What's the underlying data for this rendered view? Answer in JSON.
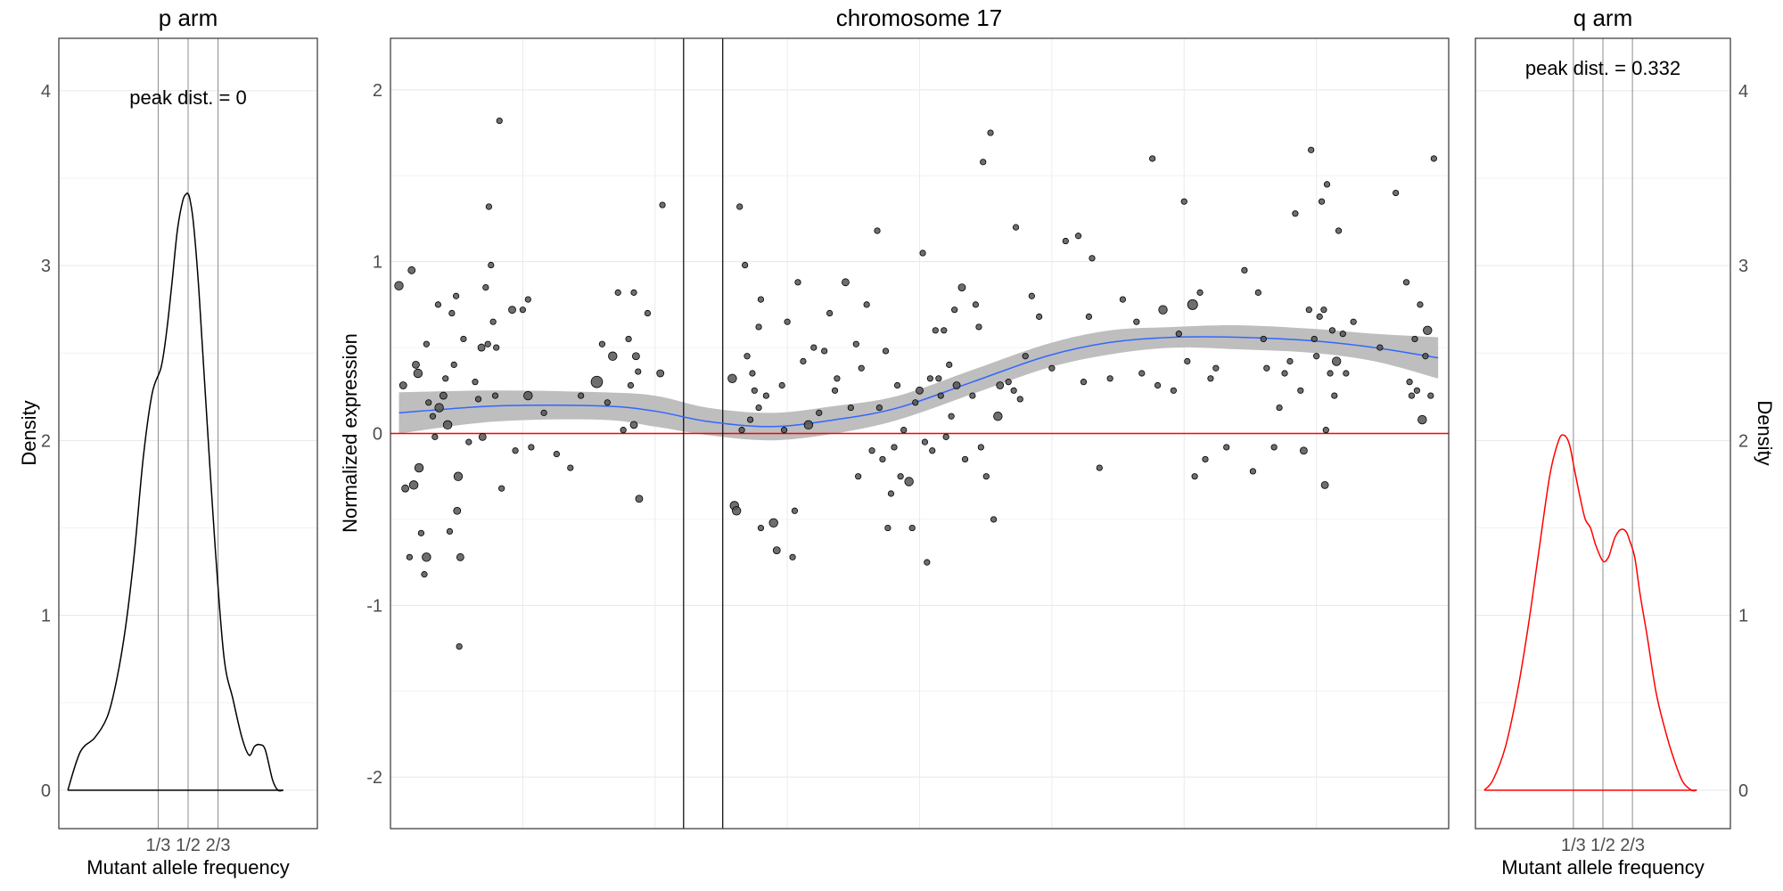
{
  "chart_data": [
    {
      "id": "p-arm",
      "type": "line",
      "title": "p arm",
      "annotation": "peak dist. = 0",
      "xlabel": "Mutant allele frequency",
      "ylabel": "Density",
      "xlim": [
        -0.22,
        1.22
      ],
      "ylim": [
        -0.22,
        4.3
      ],
      "x_ticks": [
        {
          "value": 0.3333,
          "label": "1/3"
        },
        {
          "value": 0.5,
          "label": "1/2"
        },
        {
          "value": 0.6667,
          "label": "2/3"
        }
      ],
      "y_ticks": [
        {
          "value": 0,
          "label": "0"
        },
        {
          "value": 1,
          "label": "1"
        },
        {
          "value": 2,
          "label": "2"
        },
        {
          "value": 3,
          "label": "3"
        },
        {
          "value": 4,
          "label": "4"
        }
      ],
      "vlines": [
        0.3333,
        0.5,
        0.6667
      ],
      "line_color": "#000000",
      "x": [
        -0.17,
        -0.1,
        -0.02,
        0.05,
        0.1,
        0.15,
        0.2,
        0.25,
        0.3,
        0.35,
        0.38,
        0.41,
        0.44,
        0.47,
        0.49,
        0.5,
        0.51,
        0.53,
        0.56,
        0.6,
        0.65,
        0.7,
        0.75,
        0.8,
        0.84,
        0.87,
        0.9,
        0.93,
        0.97,
        1.0,
        1.03
      ],
      "y": [
        0.0,
        0.22,
        0.3,
        0.42,
        0.62,
        0.92,
        1.35,
        1.9,
        2.27,
        2.42,
        2.62,
        2.9,
        3.2,
        3.37,
        3.41,
        3.41,
        3.38,
        3.24,
        2.86,
        2.2,
        1.4,
        0.76,
        0.52,
        0.3,
        0.2,
        0.25,
        0.26,
        0.23,
        0.06,
        0.0,
        0.0
      ]
    },
    {
      "id": "chromosome",
      "type": "scatter",
      "title": "chromosome 17",
      "ylabel": "Normalized expression",
      "xlim": [
        0,
        100
      ],
      "ylim": [
        -2.3,
        2.3
      ],
      "y_ticks": [
        {
          "value": -2,
          "label": "-2"
        },
        {
          "value": -1,
          "label": "-1"
        },
        {
          "value": 0,
          "label": "0"
        },
        {
          "value": 1,
          "label": "1"
        },
        {
          "value": 2,
          "label": "2"
        }
      ],
      "centromere": [
        27.7,
        31.4
      ],
      "hline": 0,
      "hline_color": "#ff0000",
      "smooth_color": "#3366ff",
      "band_color": "#bebebe",
      "smooth": {
        "x": [
          0.8,
          10,
          20,
          25,
          30,
          36,
          42,
          48,
          55,
          62,
          68,
          74,
          80,
          87,
          93,
          99
        ],
        "y": [
          0.12,
          0.16,
          0.16,
          0.13,
          0.07,
          0.04,
          0.08,
          0.15,
          0.3,
          0.45,
          0.53,
          0.56,
          0.56,
          0.54,
          0.5,
          0.44
        ],
        "band_half_width": [
          0.12,
          0.09,
          0.08,
          0.09,
          0.08,
          0.08,
          0.08,
          0.07,
          0.07,
          0.07,
          0.07,
          0.06,
          0.07,
          0.07,
          0.08,
          0.12
        ]
      },
      "points": [
        [
          0.8,
          0.86,
          2
        ],
        [
          1.2,
          0.28,
          1.5
        ],
        [
          1.4,
          -0.32,
          1.5
        ],
        [
          1.8,
          -0.72,
          1
        ],
        [
          2,
          0.95,
          1.5
        ],
        [
          2.2,
          -0.3,
          2
        ],
        [
          2.4,
          0.4,
          1.5
        ],
        [
          2.6,
          0.35,
          2
        ],
        [
          2.7,
          -0.2,
          2
        ],
        [
          2.9,
          -0.58,
          1
        ],
        [
          3.2,
          -0.82,
          1
        ],
        [
          3.4,
          0.52,
          1
        ],
        [
          3.4,
          -0.72,
          2
        ],
        [
          3.6,
          0.18,
          1
        ],
        [
          4,
          0.1,
          1
        ],
        [
          4.2,
          -0.02,
          1
        ],
        [
          4.5,
          0.75,
          1
        ],
        [
          4.6,
          0.15,
          2
        ],
        [
          5,
          0.22,
          1.5
        ],
        [
          5.2,
          0.32,
          1
        ],
        [
          5.4,
          0.05,
          2
        ],
        [
          5.6,
          -0.57,
          1
        ],
        [
          5.8,
          0.7,
          1
        ],
        [
          6,
          0.4,
          1
        ],
        [
          6.2,
          0.8,
          1
        ],
        [
          6.3,
          -0.45,
          1.5
        ],
        [
          6.4,
          -0.25,
          2
        ],
        [
          6.5,
          -1.24,
          1
        ],
        [
          6.6,
          -0.72,
          1.5
        ],
        [
          6.9,
          0.55,
          1
        ],
        [
          7.4,
          -0.05,
          1
        ],
        [
          8,
          0.3,
          1
        ],
        [
          8.3,
          0.2,
          1
        ],
        [
          8.6,
          0.5,
          1.5
        ],
        [
          8.7,
          -0.02,
          1.5
        ],
        [
          9,
          0.85,
          1
        ],
        [
          9.2,
          0.52,
          1
        ],
        [
          9.3,
          1.32,
          1
        ],
        [
          9.5,
          0.98,
          1
        ],
        [
          9.7,
          0.65,
          1
        ],
        [
          9.9,
          0.22,
          1
        ],
        [
          10,
          0.5,
          1
        ],
        [
          10.3,
          1.82,
          1
        ],
        [
          10.5,
          -0.32,
          1
        ],
        [
          11.5,
          0.72,
          1.5
        ],
        [
          11.8,
          -0.1,
          1
        ],
        [
          12.5,
          0.72,
          1
        ],
        [
          13,
          0.78,
          1
        ],
        [
          13,
          0.22,
          2
        ],
        [
          13.3,
          -0.08,
          1
        ],
        [
          14.5,
          0.12,
          1
        ],
        [
          15.7,
          -0.12,
          1
        ],
        [
          17,
          -0.2,
          1
        ],
        [
          18,
          0.22,
          1
        ],
        [
          19.5,
          0.3,
          3
        ],
        [
          20,
          0.52,
          1
        ],
        [
          20.5,
          0.18,
          1
        ],
        [
          21,
          0.45,
          2
        ],
        [
          21.5,
          0.82,
          1
        ],
        [
          22,
          0.02,
          1
        ],
        [
          22.5,
          0.55,
          1
        ],
        [
          22.7,
          0.28,
          1
        ],
        [
          23,
          0.82,
          1
        ],
        [
          23,
          0.05,
          1.5
        ],
        [
          23.2,
          0.45,
          1.5
        ],
        [
          23.4,
          0.36,
          1
        ],
        [
          23.5,
          -0.38,
          1.5
        ],
        [
          24.3,
          0.7,
          1
        ],
        [
          25.5,
          0.35,
          1.5
        ],
        [
          25.7,
          1.33,
          1
        ],
        [
          32.3,
          0.32,
          2
        ],
        [
          32.5,
          -0.42,
          2
        ],
        [
          32.7,
          -0.45,
          2
        ],
        [
          33,
          1.32,
          1
        ],
        [
          33.2,
          0.02,
          1
        ],
        [
          33.5,
          0.98,
          1
        ],
        [
          33.7,
          0.45,
          1
        ],
        [
          34,
          0.08,
          1
        ],
        [
          34.2,
          0.35,
          1
        ],
        [
          34.4,
          0.25,
          1
        ],
        [
          34.8,
          0.62,
          1
        ],
        [
          34.8,
          0.15,
          1
        ],
        [
          35,
          0.78,
          1
        ],
        [
          35,
          -0.55,
          1
        ],
        [
          35.5,
          0.22,
          1
        ],
        [
          36.2,
          -0.52,
          2
        ],
        [
          36.5,
          -0.68,
          1.5
        ],
        [
          37,
          0.28,
          1
        ],
        [
          37.2,
          0.02,
          1
        ],
        [
          37.5,
          0.65,
          1
        ],
        [
          38,
          -0.72,
          1
        ],
        [
          38.2,
          -0.45,
          1
        ],
        [
          38.5,
          0.88,
          1
        ],
        [
          39,
          0.42,
          1
        ],
        [
          39.5,
          0.05,
          2
        ],
        [
          40,
          0.5,
          1
        ],
        [
          40.5,
          0.12,
          1
        ],
        [
          41,
          0.48,
          1
        ],
        [
          41.5,
          0.7,
          1
        ],
        [
          42,
          0.25,
          1
        ],
        [
          42.2,
          0.32,
          1
        ],
        [
          43,
          0.88,
          1.5
        ],
        [
          43.5,
          0.15,
          1
        ],
        [
          44,
          0.52,
          1
        ],
        [
          44.2,
          -0.25,
          1
        ],
        [
          44.5,
          0.38,
          1
        ],
        [
          45,
          0.75,
          1
        ],
        [
          45.5,
          -0.1,
          1
        ],
        [
          46,
          1.18,
          1
        ],
        [
          46.2,
          0.15,
          1
        ],
        [
          46.5,
          -0.15,
          1
        ],
        [
          46.8,
          0.48,
          1
        ],
        [
          47,
          -0.55,
          1
        ],
        [
          47.3,
          -0.35,
          1
        ],
        [
          47.6,
          -0.08,
          1
        ],
        [
          47.9,
          0.28,
          1
        ],
        [
          48.2,
          -0.25,
          1
        ],
        [
          48.5,
          0.02,
          1
        ],
        [
          49,
          -0.28,
          2
        ],
        [
          49.3,
          -0.55,
          1
        ],
        [
          49.6,
          0.18,
          1
        ],
        [
          50,
          0.25,
          1.5
        ],
        [
          50.3,
          1.05,
          1
        ],
        [
          50.5,
          -0.05,
          1
        ],
        [
          50.7,
          -0.75,
          1
        ],
        [
          51,
          0.32,
          1
        ],
        [
          51.2,
          -0.1,
          1
        ],
        [
          51.5,
          0.6,
          1
        ],
        [
          51.8,
          0.32,
          1
        ],
        [
          52,
          0.22,
          1
        ],
        [
          52.3,
          0.6,
          1
        ],
        [
          52.5,
          -0.02,
          1
        ],
        [
          52.8,
          0.4,
          1
        ],
        [
          53,
          0.1,
          1
        ],
        [
          53.3,
          0.72,
          1
        ],
        [
          53.5,
          0.28,
          1.5
        ],
        [
          54,
          0.85,
          1.5
        ],
        [
          54.3,
          -0.15,
          1
        ],
        [
          55,
          0.22,
          1
        ],
        [
          55.3,
          0.75,
          1
        ],
        [
          55.6,
          0.62,
          1
        ],
        [
          55.8,
          -0.08,
          1
        ],
        [
          56,
          1.58,
          1
        ],
        [
          56.3,
          -0.25,
          1
        ],
        [
          56.7,
          1.75,
          1
        ],
        [
          57,
          -0.5,
          1
        ],
        [
          57.4,
          0.1,
          2
        ],
        [
          57.6,
          0.28,
          1.5
        ],
        [
          58.4,
          0.3,
          1
        ],
        [
          58.9,
          0.25,
          1
        ],
        [
          59.1,
          1.2,
          1
        ],
        [
          59.5,
          0.2,
          1
        ],
        [
          60,
          0.45,
          1
        ],
        [
          60.6,
          0.8,
          1
        ],
        [
          61.3,
          0.68,
          1
        ],
        [
          62.5,
          0.38,
          1
        ],
        [
          63.8,
          1.12,
          1
        ],
        [
          65,
          1.15,
          1
        ],
        [
          65.5,
          0.3,
          1
        ],
        [
          66,
          0.68,
          1
        ],
        [
          66.3,
          1.02,
          1
        ],
        [
          67,
          -0.2,
          1
        ],
        [
          68,
          0.32,
          1
        ],
        [
          69.2,
          0.78,
          1
        ],
        [
          70.5,
          0.65,
          1
        ],
        [
          71,
          0.35,
          1
        ],
        [
          72,
          1.6,
          1
        ],
        [
          72.5,
          0.28,
          1
        ],
        [
          73,
          0.72,
          2
        ],
        [
          74,
          0.25,
          1
        ],
        [
          74.5,
          0.58,
          1
        ],
        [
          75,
          1.35,
          1
        ],
        [
          75.3,
          0.42,
          1
        ],
        [
          75.8,
          0.75,
          2.5
        ],
        [
          76,
          -0.25,
          1
        ],
        [
          76.5,
          0.82,
          1
        ],
        [
          77,
          -0.15,
          1
        ],
        [
          77.5,
          0.32,
          1
        ],
        [
          78,
          0.38,
          1
        ],
        [
          79,
          -0.08,
          1
        ],
        [
          80.7,
          0.95,
          1
        ],
        [
          81.5,
          -0.22,
          1
        ],
        [
          82,
          0.82,
          1
        ],
        [
          82.5,
          0.55,
          1
        ],
        [
          82.8,
          0.38,
          1
        ],
        [
          83.5,
          -0.08,
          1
        ],
        [
          84,
          0.15,
          1
        ],
        [
          84.5,
          0.35,
          1
        ],
        [
          85,
          0.42,
          1
        ],
        [
          85.5,
          1.28,
          1
        ],
        [
          86,
          0.25,
          1
        ],
        [
          86.3,
          -0.1,
          1.5
        ],
        [
          86.8,
          0.72,
          1
        ],
        [
          87,
          1.65,
          1
        ],
        [
          87.3,
          0.55,
          1
        ],
        [
          87.5,
          0.45,
          1
        ],
        [
          87.8,
          0.68,
          1
        ],
        [
          88,
          1.35,
          1
        ],
        [
          88.2,
          0.72,
          1
        ],
        [
          88.3,
          -0.3,
          1.5
        ],
        [
          88.4,
          0.02,
          1
        ],
        [
          88.5,
          1.45,
          1
        ],
        [
          88.8,
          0.35,
          1
        ],
        [
          89,
          0.6,
          1
        ],
        [
          89.2,
          0.22,
          1
        ],
        [
          89.4,
          0.42,
          2
        ],
        [
          89.6,
          1.18,
          1
        ],
        [
          90,
          0.58,
          1
        ],
        [
          90.3,
          0.35,
          1
        ],
        [
          91,
          0.65,
          1
        ],
        [
          93.5,
          0.5,
          1
        ],
        [
          95,
          1.4,
          1
        ],
        [
          96,
          0.88,
          1
        ],
        [
          96.3,
          0.3,
          1
        ],
        [
          96.5,
          0.22,
          1
        ],
        [
          96.8,
          0.55,
          1
        ],
        [
          97,
          0.25,
          1
        ],
        [
          97.3,
          0.75,
          1
        ],
        [
          97.5,
          0.08,
          2
        ],
        [
          97.8,
          0.45,
          1
        ],
        [
          98,
          0.6,
          2
        ],
        [
          98.3,
          0.22,
          1
        ],
        [
          98.6,
          1.6,
          1
        ]
      ]
    },
    {
      "id": "q-arm",
      "type": "line",
      "title": "q arm",
      "annotation": "peak dist. = 0.332",
      "xlabel": "Mutant allele frequency",
      "ylabel": "Density",
      "xlim": [
        -0.22,
        1.22
      ],
      "ylim": [
        -0.22,
        4.3
      ],
      "x_ticks": [
        {
          "value": 0.3333,
          "label": "1/3"
        },
        {
          "value": 0.5,
          "label": "1/2"
        },
        {
          "value": 0.6667,
          "label": "2/3"
        }
      ],
      "y_ticks": [
        {
          "value": 0,
          "label": "0"
        },
        {
          "value": 1,
          "label": "1"
        },
        {
          "value": 2,
          "label": "2"
        },
        {
          "value": 3,
          "label": "3"
        },
        {
          "value": 4,
          "label": "4"
        }
      ],
      "vlines": [
        0.3333,
        0.5,
        0.6667
      ],
      "line_color": "#ff0000",
      "x": [
        -0.17,
        -0.12,
        -0.05,
        0.02,
        0.08,
        0.14,
        0.2,
        0.25,
        0.28,
        0.31,
        0.34,
        0.37,
        0.4,
        0.43,
        0.46,
        0.5,
        0.53,
        0.55,
        0.57,
        0.6,
        0.63,
        0.65,
        0.68,
        0.71,
        0.75,
        0.8,
        0.85,
        0.9,
        0.95,
        1.0,
        1.03
      ],
      "y": [
        0.0,
        0.06,
        0.25,
        0.58,
        0.95,
        1.38,
        1.8,
        2.0,
        2.03,
        1.98,
        1.83,
        1.68,
        1.55,
        1.5,
        1.4,
        1.31,
        1.33,
        1.39,
        1.45,
        1.49,
        1.48,
        1.43,
        1.33,
        1.12,
        0.88,
        0.56,
        0.35,
        0.18,
        0.05,
        0.0,
        0.0
      ]
    }
  ]
}
